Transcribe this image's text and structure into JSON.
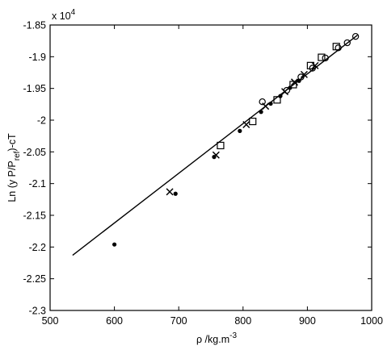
{
  "chart_data": {
    "type": "scatter",
    "title": "",
    "xlabel": "ρ /kg.m",
    "xlabel_sup": "-3",
    "ylabel_parts": [
      "Ln (y P/P",
      "ref",
      ")-cT"
    ],
    "y_multiplier": "x 10",
    "y_multiplier_exp": "4",
    "xlim": [
      500,
      1000
    ],
    "ylim": [
      -2.3,
      -1.85
    ],
    "xticks": [
      500,
      600,
      700,
      800,
      900,
      1000
    ],
    "xtick_labels": [
      "500",
      "600",
      "700",
      "800",
      "900",
      "1000"
    ],
    "yticks": [
      -2.3,
      -2.25,
      -2.2,
      -2.15,
      -2.1,
      -2.05,
      -2.0,
      -1.95,
      -1.9,
      -1.85
    ],
    "ytick_labels": [
      "-2.3",
      "-2.25",
      "-2.2",
      "-2.15",
      "-2.1",
      "-2.05",
      "-2",
      "-1.95",
      "-1.9",
      "-1.85"
    ],
    "grid": false,
    "legend": false,
    "fit_line": {
      "x": [
        535,
        978
      ],
      "y": [
        -2.213,
        -1.866
      ]
    },
    "series": [
      {
        "marker": "dot",
        "points": [
          [
            600,
            -2.196
          ],
          [
            695,
            -2.116
          ],
          [
            755,
            -2.058
          ],
          [
            795,
            -2.017
          ],
          [
            828,
            -1.987
          ],
          [
            843,
            -1.974
          ],
          [
            858,
            -1.962
          ],
          [
            873,
            -1.949
          ],
          [
            887,
            -1.938
          ]
        ]
      },
      {
        "marker": "x",
        "points": [
          [
            686,
            -2.113
          ],
          [
            758,
            -2.055
          ],
          [
            805,
            -2.007
          ],
          [
            835,
            -1.978
          ],
          [
            865,
            -1.955
          ],
          [
            880,
            -1.94
          ],
          [
            895,
            -1.928
          ],
          [
            912,
            -1.914
          ]
        ]
      },
      {
        "marker": "square",
        "points": [
          [
            765,
            -2.04
          ],
          [
            815,
            -2.002
          ],
          [
            853,
            -1.968
          ],
          [
            878,
            -1.944
          ],
          [
            905,
            -1.914
          ],
          [
            922,
            -1.901
          ],
          [
            945,
            -1.884
          ]
        ]
      },
      {
        "marker": "circle",
        "points": [
          [
            830,
            -1.971
          ],
          [
            868,
            -1.953
          ],
          [
            890,
            -1.932
          ],
          [
            908,
            -1.918
          ],
          [
            928,
            -1.902
          ],
          [
            948,
            -1.886
          ],
          [
            962,
            -1.878
          ],
          [
            975,
            -1.868
          ]
        ]
      }
    ]
  }
}
